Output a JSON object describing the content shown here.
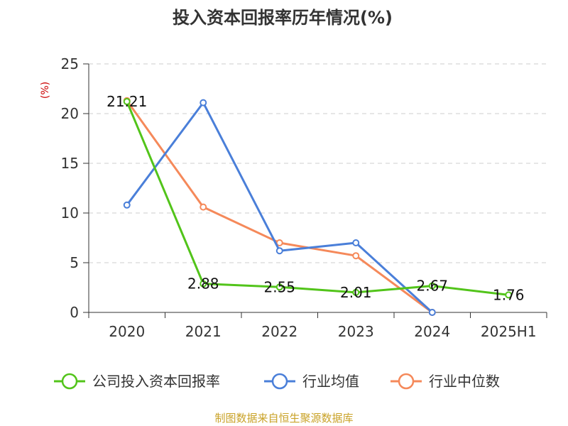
{
  "chart_data": {
    "type": "line",
    "title": "投入资本回报率历年情况(%)",
    "ylabel": "(%)",
    "xlabel": "",
    "categories": [
      "2020",
      "2021",
      "2022",
      "2023",
      "2024",
      "2025H1"
    ],
    "ylim": [
      0,
      25
    ],
    "yticks": [
      0,
      5,
      10,
      15,
      20,
      25
    ],
    "grid": true,
    "legend_position": "bottom",
    "series": [
      {
        "name": "公司投入资本回报率",
        "color": "#52c41a",
        "values": [
          21.21,
          2.88,
          2.55,
          2.01,
          2.67,
          1.76
        ],
        "labels": [
          "21.21",
          "2.88",
          "2.55",
          "2.01",
          "2.67",
          "1.76"
        ]
      },
      {
        "name": "行业均值",
        "color": "#4a7fd9",
        "values": [
          10.8,
          21.1,
          6.2,
          7.0,
          0.0,
          null
        ]
      },
      {
        "name": "行业中位数",
        "color": "#f5895a",
        "values": [
          21.3,
          10.6,
          7.0,
          5.7,
          0.0,
          null
        ]
      }
    ]
  },
  "source": "制图数据来自恒生聚源数据库",
  "colors": {
    "title": "#333333",
    "ylabel": "#cc0000",
    "source": "#c9a227",
    "grid": "#cccccc",
    "axis": "#333333"
  }
}
